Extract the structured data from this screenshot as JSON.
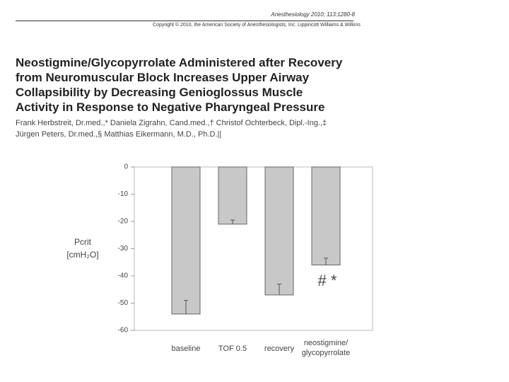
{
  "journal": "Anesthesiology 2010; 113:1280-8",
  "copyright": "Copyright © 2010, the American Society of Anesthesiologists, Inc. Lippincott Williams & Wilkins",
  "title_lines": [
    "Neostigmine/Glycopyrrolate Administered after Recovery",
    "from Neuromuscular Block Increases Upper Airway",
    "Collapsibility by Decreasing Genioglossus Muscle",
    "Activity in Response to Negative Pharyngeal Pressure"
  ],
  "author_lines": [
    "Frank Herbstreit, Dr.med.,* Daniela Zigrahn, Cand.med.,† Christof Ochterbeck, Dipl.-Ing.,‡",
    "Jürgen Peters, Dr.med.,§ Matthias Eikermann, M.D., Ph.D.||"
  ],
  "chart_data": {
    "type": "bar",
    "y_label_lines": [
      "Pcrit",
      "[cmH₂O]"
    ],
    "categories": [
      "baseline",
      "TOF 0.5",
      "recovery",
      "neostigmine/ glycopyrrolate"
    ],
    "values": [
      -54,
      -21,
      -47,
      -36
    ],
    "errors": [
      5,
      1.5,
      4,
      2.5
    ],
    "color": "#c8c8c8",
    "annotation": "# *",
    "ylim": [
      -60,
      0
    ],
    "yticks": [
      0,
      -10,
      -20,
      -30,
      -40,
      -50,
      -60
    ]
  }
}
